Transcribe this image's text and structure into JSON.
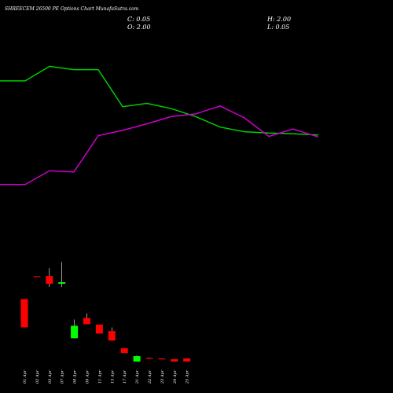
{
  "header": {
    "title": "SHREECEM 26500 PE Options Chart MunafaSutra.com",
    "close_label": "C: 0.05",
    "high_label": "H: 2.00",
    "open_label": "O: 2.00",
    "low_label": "L: 0.05"
  },
  "colors": {
    "background": "#000000",
    "text": "#ffffff",
    "up": "#00ff00",
    "down": "#ff0000",
    "line_green": "#00cc00",
    "line_magenta": "#cc00cc"
  },
  "chart_data": {
    "type": "candlestick",
    "categories": [
      "01 Apr",
      "02 Apr",
      "03 Apr",
      "07 Apr",
      "08 Apr",
      "09 Apr",
      "11 Apr",
      "15 Apr",
      "17 Apr",
      "21 Apr",
      "22 Apr",
      "23 Apr",
      "24 Apr",
      "25 Apr"
    ],
    "candles": [
      {
        "open": 40.2,
        "high": 40.2,
        "low": 22.0,
        "close": 22.0
      },
      {
        "open": 54.9,
        "high": 54.9,
        "low": 54.55,
        "close": 54.55
      },
      {
        "open": 55.0,
        "high": 60.0,
        "low": 48.0,
        "close": 50.0
      },
      {
        "open": 50.0,
        "high": 64.0,
        "low": 48.0,
        "close": 51.0
      },
      {
        "open": 15.0,
        "high": 27.0,
        "low": 15.0,
        "close": 23.0
      },
      {
        "open": 28.0,
        "high": 31.0,
        "low": 24.0,
        "close": 24.0
      },
      {
        "open": 23.8,
        "high": 23.8,
        "low": 18.0,
        "close": 18.0
      },
      {
        "open": 19.6,
        "high": 22.0,
        "low": 13.5,
        "close": 13.5
      },
      {
        "open": 8.5,
        "high": 8.5,
        "low": 5.5,
        "close": 5.5
      },
      {
        "open": 0.0,
        "high": 4.0,
        "low": 0.0,
        "close": 3.5
      },
      {
        "open": 2.3,
        "high": 2.5,
        "low": 2.0,
        "close": 2.1
      },
      {
        "open": 2.0,
        "high": 2.0,
        "low": 1.4,
        "close": 1.6
      },
      {
        "open": 1.5,
        "high": 1.5,
        "low": 0.0,
        "close": 0.0
      },
      {
        "open": 2.0,
        "high": 2.0,
        "low": 0.05,
        "close": 0.05
      }
    ],
    "line_green": [
      0.62,
      0.62,
      0.84,
      0.79,
      0.79,
      0.23,
      0.28,
      0.2,
      0.08,
      -0.08,
      -0.15,
      -0.17,
      -0.18,
      -0.2
    ],
    "line_magenta": [
      -0.95,
      -0.95,
      -0.74,
      -0.76,
      -0.21,
      -0.13,
      -0.03,
      0.08,
      0.12,
      0.24,
      0.06,
      -0.22,
      -0.11,
      -0.23
    ],
    "ylim": [
      0,
      97
    ],
    "line_ylim": [
      -1.25,
      1.25
    ]
  }
}
